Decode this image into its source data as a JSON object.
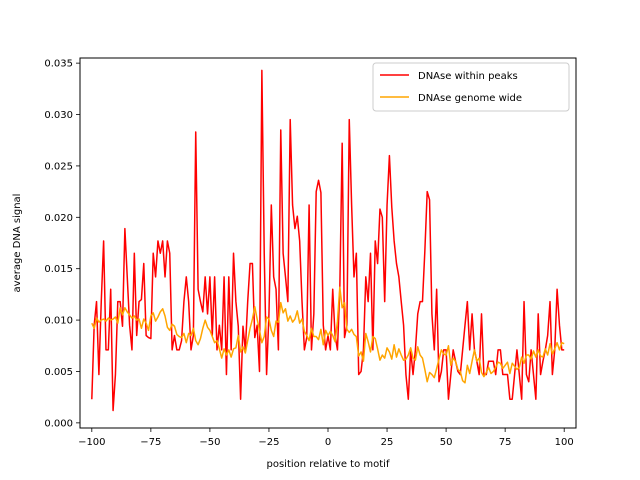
{
  "chart_data": {
    "type": "line",
    "xlabel": "position relative to motif",
    "ylabel": "average DNA signal",
    "xlim": [
      -105,
      105
    ],
    "ylim": [
      -0.0005,
      0.0355
    ],
    "xticks": [
      -100,
      -75,
      -50,
      -25,
      0,
      25,
      50,
      75,
      100
    ],
    "yticks": [
      0.0,
      0.005,
      0.01,
      0.015,
      0.02,
      0.025,
      0.03,
      0.035
    ],
    "ytick_labels": [
      "0.000",
      "0.005",
      "0.010",
      "0.015",
      "0.020",
      "0.025",
      "0.030",
      "0.035"
    ],
    "grid": false,
    "legend_position": "top-right",
    "x_start": -100,
    "x_step": 1,
    "series": [
      {
        "name": "DNAse within peaks",
        "color": "#ff0000",
        "values": [
          0.0023,
          0.0095,
          0.0118,
          0.0047,
          0.0118,
          0.0177,
          0.0071,
          0.0071,
          0.013,
          0.0012,
          0.0047,
          0.0118,
          0.0118,
          0.0094,
          0.0189,
          0.0142,
          0.0095,
          0.0071,
          0.0165,
          0.0085,
          0.0118,
          0.012,
          0.0155,
          0.0085,
          0.0083,
          0.0082,
          0.0165,
          0.0142,
          0.0177,
          0.0165,
          0.0177,
          0.0142,
          0.0177,
          0.0165,
          0.0071,
          0.0085,
          0.0071,
          0.0071,
          0.008,
          0.0118,
          0.0142,
          0.0118,
          0.0071,
          0.0085,
          0.0283,
          0.013,
          0.0118,
          0.0108,
          0.0142,
          0.0106,
          0.0142,
          0.0085,
          0.0142,
          0.0071,
          0.0095,
          0.0071,
          0.0142,
          0.0047,
          0.0142,
          0.0071,
          0.0165,
          0.0118,
          0.0094,
          0.0023,
          0.0094,
          0.0071,
          0.0118,
          0.0155,
          0.0155,
          0.0083,
          0.0095,
          0.005,
          0.0343,
          0.0165,
          0.0047,
          0.0106,
          0.0212,
          0.0142,
          0.013,
          0.0071,
          0.0285,
          0.0165,
          0.0142,
          0.0118,
          0.0295,
          0.0212,
          0.0189,
          0.0201,
          0.0177,
          0.0118,
          0.0071,
          0.0083,
          0.0212,
          0.0071,
          0.0106,
          0.0225,
          0.0236,
          0.0224,
          0.0095,
          0.0071,
          0.0085,
          0.0071,
          0.013,
          0.0085,
          0.0071,
          0.013,
          0.0272,
          0.0083,
          0.0095,
          0.0295,
          0.0212,
          0.0142,
          0.0165,
          0.0047,
          0.005,
          0.0071,
          0.0142,
          0.0118,
          0.0165,
          0.0071,
          0.0177,
          0.0155,
          0.0208,
          0.02,
          0.0118,
          0.0212,
          0.026,
          0.021,
          0.0177,
          0.0155,
          0.0142,
          0.0118,
          0.0095,
          0.0047,
          0.0023,
          0.0071,
          0.0047,
          0.0071,
          0.0106,
          0.0118,
          0.0118,
          0.0167,
          0.0225,
          0.0217,
          0.0106,
          0.0071,
          0.013,
          0.004,
          0.005,
          0.0071,
          0.0071,
          0.0023,
          0.0047,
          0.0071,
          0.006,
          0.005,
          0.0047,
          0.0071,
          0.0095,
          0.0118,
          0.0071,
          0.0106,
          0.0071,
          0.006,
          0.0047,
          0.0106,
          0.0047,
          0.0047,
          0.006,
          0.006,
          0.006,
          0.0047,
          0.0071,
          0.0071,
          0.0047,
          0.0047,
          0.0047,
          0.0023,
          0.0023,
          0.0047,
          0.0071,
          0.0047,
          0.0023,
          0.0118,
          0.0047,
          0.004,
          0.0071,
          0.0047,
          0.0023,
          0.0106,
          0.0047,
          0.006,
          0.0071,
          0.0085,
          0.0118,
          0.0047,
          0.0071,
          0.013,
          0.0095,
          0.0071,
          0.0071
        ]
      },
      {
        "name": "DNAse genome wide",
        "color": "#ffa500",
        "values": [
          0.0097,
          0.0092,
          0.0102,
          0.0098,
          0.01,
          0.0101,
          0.0099,
          0.0102,
          0.01,
          0.0101,
          0.0103,
          0.0097,
          0.0112,
          0.0105,
          0.0112,
          0.0108,
          0.0105,
          0.0102,
          0.0104,
          0.01,
          0.0101,
          0.0092,
          0.0101,
          0.0097,
          0.009,
          0.0104,
          0.0107,
          0.0099,
          0.0103,
          0.0108,
          0.0111,
          0.0104,
          0.0093,
          0.009,
          0.0096,
          0.0094,
          0.0086,
          0.0084,
          0.0083,
          0.0087,
          0.0078,
          0.0087,
          0.0085,
          0.0092,
          0.008,
          0.0076,
          0.0082,
          0.0092,
          0.01,
          0.0093,
          0.009,
          0.0084,
          0.0078,
          0.008,
          0.0072,
          0.0063,
          0.0072,
          0.0066,
          0.0071,
          0.0064,
          0.0072,
          0.0073,
          0.0085,
          0.0069,
          0.0074,
          0.0068,
          0.008,
          0.0092,
          0.0101,
          0.0113,
          0.0101,
          0.009,
          0.0078,
          0.0084,
          0.0103,
          0.0101,
          0.009,
          0.0084,
          0.0099,
          0.0098,
          0.0117,
          0.0107,
          0.0111,
          0.0099,
          0.0104,
          0.0098,
          0.0101,
          0.0109,
          0.0097,
          0.0101,
          0.0089,
          0.0085,
          0.008,
          0.0092,
          0.0084,
          0.0084,
          0.0081,
          0.0091,
          0.0076,
          0.009,
          0.0085,
          0.0089,
          0.0085,
          0.0079,
          0.0099,
          0.0132,
          0.0112,
          0.0117,
          0.0091,
          0.0088,
          0.0091,
          0.0086,
          0.0084,
          0.0065,
          0.0069,
          0.006,
          0.0087,
          0.0079,
          0.0069,
          0.0084,
          0.0082,
          0.0072,
          0.0061,
          0.0066,
          0.0063,
          0.0073,
          0.0069,
          0.0062,
          0.0076,
          0.0064,
          0.0072,
          0.0066,
          0.0061,
          0.0062,
          0.0066,
          0.0073,
          0.0063,
          0.0061,
          0.0074,
          0.0066,
          0.0063,
          0.0052,
          0.004,
          0.0049,
          0.0047,
          0.0044,
          0.0053,
          0.0062,
          0.0071,
          0.0067,
          0.0066,
          0.0075,
          0.0056,
          0.0063,
          0.006,
          0.0052,
          0.005,
          0.0041,
          0.0039,
          0.0056,
          0.0048,
          0.006,
          0.0071,
          0.006,
          0.0063,
          0.0049,
          0.0045,
          0.0049,
          0.0054,
          0.0048,
          0.005,
          0.0054,
          0.0059,
          0.0058,
          0.0053,
          0.0056,
          0.0059,
          0.0048,
          0.0058,
          0.0055,
          0.0052,
          0.0054,
          0.0064,
          0.0058,
          0.0066,
          0.0066,
          0.0062,
          0.007,
          0.0064,
          0.0071,
          0.0065,
          0.0064,
          0.0072,
          0.0066,
          0.0077,
          0.0067,
          0.0072,
          0.0078,
          0.0071,
          0.0078,
          0.0077
        ]
      }
    ]
  }
}
